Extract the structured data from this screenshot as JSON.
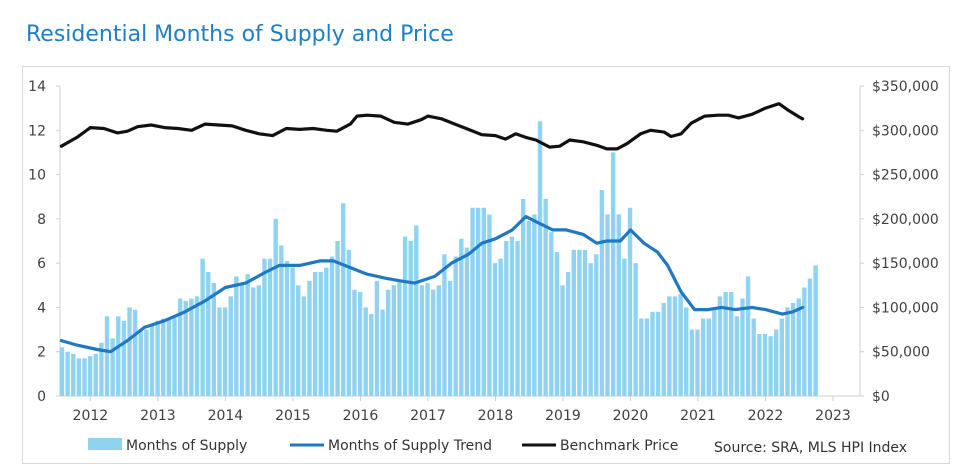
{
  "title": "Residential Months of Supply and Price",
  "source": "Source: SRA, MLS HPI Index",
  "chart_data": {
    "type": "bar+line",
    "x_axis": {
      "ticks": [
        "2012",
        "2013",
        "2014",
        "2015",
        "2016",
        "2017",
        "2018",
        "2019",
        "2020",
        "2021",
        "2022",
        "2023"
      ],
      "start": 2011.55,
      "end": 2023.4
    },
    "left_axis": {
      "min": 0,
      "max": 14,
      "ticks": [
        "0",
        "2",
        "4",
        "6",
        "8",
        "10",
        "12",
        "14"
      ]
    },
    "right_axis": {
      "min": 0,
      "max": 350000,
      "ticks": [
        "$0",
        "$50,000",
        "$100,000",
        "$150,000",
        "$200,000",
        "$250,000",
        "$300,000",
        "$350,000"
      ]
    },
    "legend": [
      "Months of Supply",
      "Months of Supply Trend",
      "Benchmark Price"
    ],
    "colors": {
      "bars": "#8fd3f0",
      "trend": "#1f78c1",
      "price": "#111111",
      "axis": "#d0d0d0",
      "text": "#404040"
    },
    "bars": {
      "name": "Months of Supply",
      "start": 2011.58,
      "step": 0.0833,
      "values": [
        2.2,
        2.0,
        1.9,
        1.7,
        1.7,
        1.8,
        1.9,
        2.4,
        3.6,
        2.6,
        3.6,
        3.4,
        4.0,
        3.9,
        3.0,
        3.0,
        3.2,
        3.4,
        3.5,
        3.5,
        3.6,
        4.4,
        4.3,
        4.4,
        4.5,
        6.2,
        5.6,
        5.1,
        4.0,
        4.0,
        4.5,
        5.4,
        5.1,
        5.5,
        4.9,
        5.0,
        6.2,
        6.2,
        8.0,
        6.8,
        6.1,
        5.8,
        5.0,
        4.5,
        5.2,
        5.6,
        5.6,
        5.8,
        6.3,
        7.0,
        8.7,
        6.6,
        4.8,
        4.7,
        4.0,
        3.7,
        5.2,
        3.9,
        4.8,
        5.0,
        5.2,
        7.2,
        7.0,
        7.7,
        5.0,
        5.1,
        4.8,
        5.0,
        6.4,
        5.2,
        6.3,
        7.1,
        6.7,
        8.5,
        8.5,
        8.5,
        8.2,
        6.0,
        6.2,
        7.0,
        7.2,
        7.0,
        8.9,
        7.9,
        8.2,
        12.4,
        8.9,
        7.4,
        6.5,
        5.0,
        5.6,
        6.6,
        6.6,
        6.6,
        6.0,
        6.4,
        9.3,
        8.2,
        11.0,
        8.2,
        6.2,
        8.5,
        6.0,
        3.5,
        3.5,
        3.8,
        3.8,
        4.2,
        4.5,
        4.5,
        4.6,
        4.0,
        3.0,
        3.0,
        3.5,
        3.5,
        4.0,
        4.5,
        4.7,
        4.7,
        3.6,
        4.4,
        5.4,
        3.5,
        2.8,
        2.8,
        2.7,
        3.0,
        3.5,
        4.0,
        4.2,
        4.4,
        4.9,
        5.3,
        5.9
      ]
    },
    "trend": {
      "name": "Months of Supply Trend",
      "points": [
        [
          2011.57,
          2.5
        ],
        [
          2011.8,
          2.3
        ],
        [
          2012.1,
          2.1
        ],
        [
          2012.3,
          2.0
        ],
        [
          2012.55,
          2.5
        ],
        [
          2012.8,
          3.1
        ],
        [
          2013.1,
          3.4
        ],
        [
          2013.4,
          3.8
        ],
        [
          2013.7,
          4.3
        ],
        [
          2014.0,
          4.9
        ],
        [
          2014.3,
          5.1
        ],
        [
          2014.6,
          5.6
        ],
        [
          2014.8,
          5.9
        ],
        [
          2015.1,
          5.9
        ],
        [
          2015.4,
          6.1
        ],
        [
          2015.6,
          6.1
        ],
        [
          2015.85,
          5.8
        ],
        [
          2016.1,
          5.5
        ],
        [
          2016.4,
          5.3
        ],
        [
          2016.6,
          5.2
        ],
        [
          2016.8,
          5.1
        ],
        [
          2017.1,
          5.4
        ],
        [
          2017.35,
          6.0
        ],
        [
          2017.6,
          6.4
        ],
        [
          2017.8,
          6.9
        ],
        [
          2018.0,
          7.1
        ],
        [
          2018.25,
          7.5
        ],
        [
          2018.45,
          8.1
        ],
        [
          2018.65,
          7.8
        ],
        [
          2018.85,
          7.5
        ],
        [
          2019.05,
          7.5
        ],
        [
          2019.3,
          7.3
        ],
        [
          2019.5,
          6.9
        ],
        [
          2019.65,
          7.0
        ],
        [
          2019.85,
          7.0
        ],
        [
          2020.0,
          7.5
        ],
        [
          2020.2,
          6.9
        ],
        [
          2020.4,
          6.5
        ],
        [
          2020.55,
          5.9
        ],
        [
          2020.75,
          4.7
        ],
        [
          2020.95,
          3.9
        ],
        [
          2021.15,
          3.9
        ],
        [
          2021.35,
          4.0
        ],
        [
          2021.55,
          3.9
        ],
        [
          2021.8,
          4.0
        ],
        [
          2022.0,
          3.9
        ],
        [
          2022.25,
          3.7
        ],
        [
          2022.4,
          3.8
        ],
        [
          2022.55,
          4.0
        ]
      ]
    },
    "price": {
      "name": "Benchmark Price",
      "points": [
        [
          2011.57,
          282000
        ],
        [
          2011.8,
          292000
        ],
        [
          2012.0,
          303000
        ],
        [
          2012.2,
          302000
        ],
        [
          2012.4,
          297000
        ],
        [
          2012.55,
          299000
        ],
        [
          2012.7,
          304000
        ],
        [
          2012.9,
          306000
        ],
        [
          2013.1,
          303000
        ],
        [
          2013.3,
          302000
        ],
        [
          2013.5,
          300000
        ],
        [
          2013.7,
          307000
        ],
        [
          2013.9,
          306000
        ],
        [
          2014.1,
          305000
        ],
        [
          2014.3,
          300000
        ],
        [
          2014.5,
          296000
        ],
        [
          2014.7,
          294000
        ],
        [
          2014.9,
          302000
        ],
        [
          2015.1,
          301000
        ],
        [
          2015.3,
          302000
        ],
        [
          2015.5,
          300000
        ],
        [
          2015.65,
          299000
        ],
        [
          2015.85,
          307000
        ],
        [
          2015.95,
          316000
        ],
        [
          2016.1,
          317000
        ],
        [
          2016.3,
          316000
        ],
        [
          2016.5,
          309000
        ],
        [
          2016.7,
          307000
        ],
        [
          2016.9,
          312000
        ],
        [
          2017.0,
          316000
        ],
        [
          2017.2,
          313000
        ],
        [
          2017.4,
          307000
        ],
        [
          2017.6,
          301000
        ],
        [
          2017.8,
          295000
        ],
        [
          2018.0,
          294000
        ],
        [
          2018.15,
          290000
        ],
        [
          2018.3,
          296000
        ],
        [
          2018.45,
          292000
        ],
        [
          2018.6,
          289000
        ],
        [
          2018.8,
          281000
        ],
        [
          2018.95,
          282000
        ],
        [
          2019.1,
          289000
        ],
        [
          2019.3,
          287000
        ],
        [
          2019.5,
          283000
        ],
        [
          2019.65,
          279000
        ],
        [
          2019.8,
          279000
        ],
        [
          2019.95,
          285000
        ],
        [
          2020.15,
          296000
        ],
        [
          2020.3,
          300000
        ],
        [
          2020.5,
          298000
        ],
        [
          2020.6,
          293000
        ],
        [
          2020.75,
          296000
        ],
        [
          2020.9,
          308000
        ],
        [
          2021.1,
          316000
        ],
        [
          2021.3,
          317000
        ],
        [
          2021.45,
          317000
        ],
        [
          2021.6,
          314000
        ],
        [
          2021.8,
          318000
        ],
        [
          2022.0,
          325000
        ],
        [
          2022.2,
          330000
        ],
        [
          2022.35,
          322000
        ],
        [
          2022.5,
          315000
        ],
        [
          2022.55,
          313000
        ]
      ]
    }
  }
}
